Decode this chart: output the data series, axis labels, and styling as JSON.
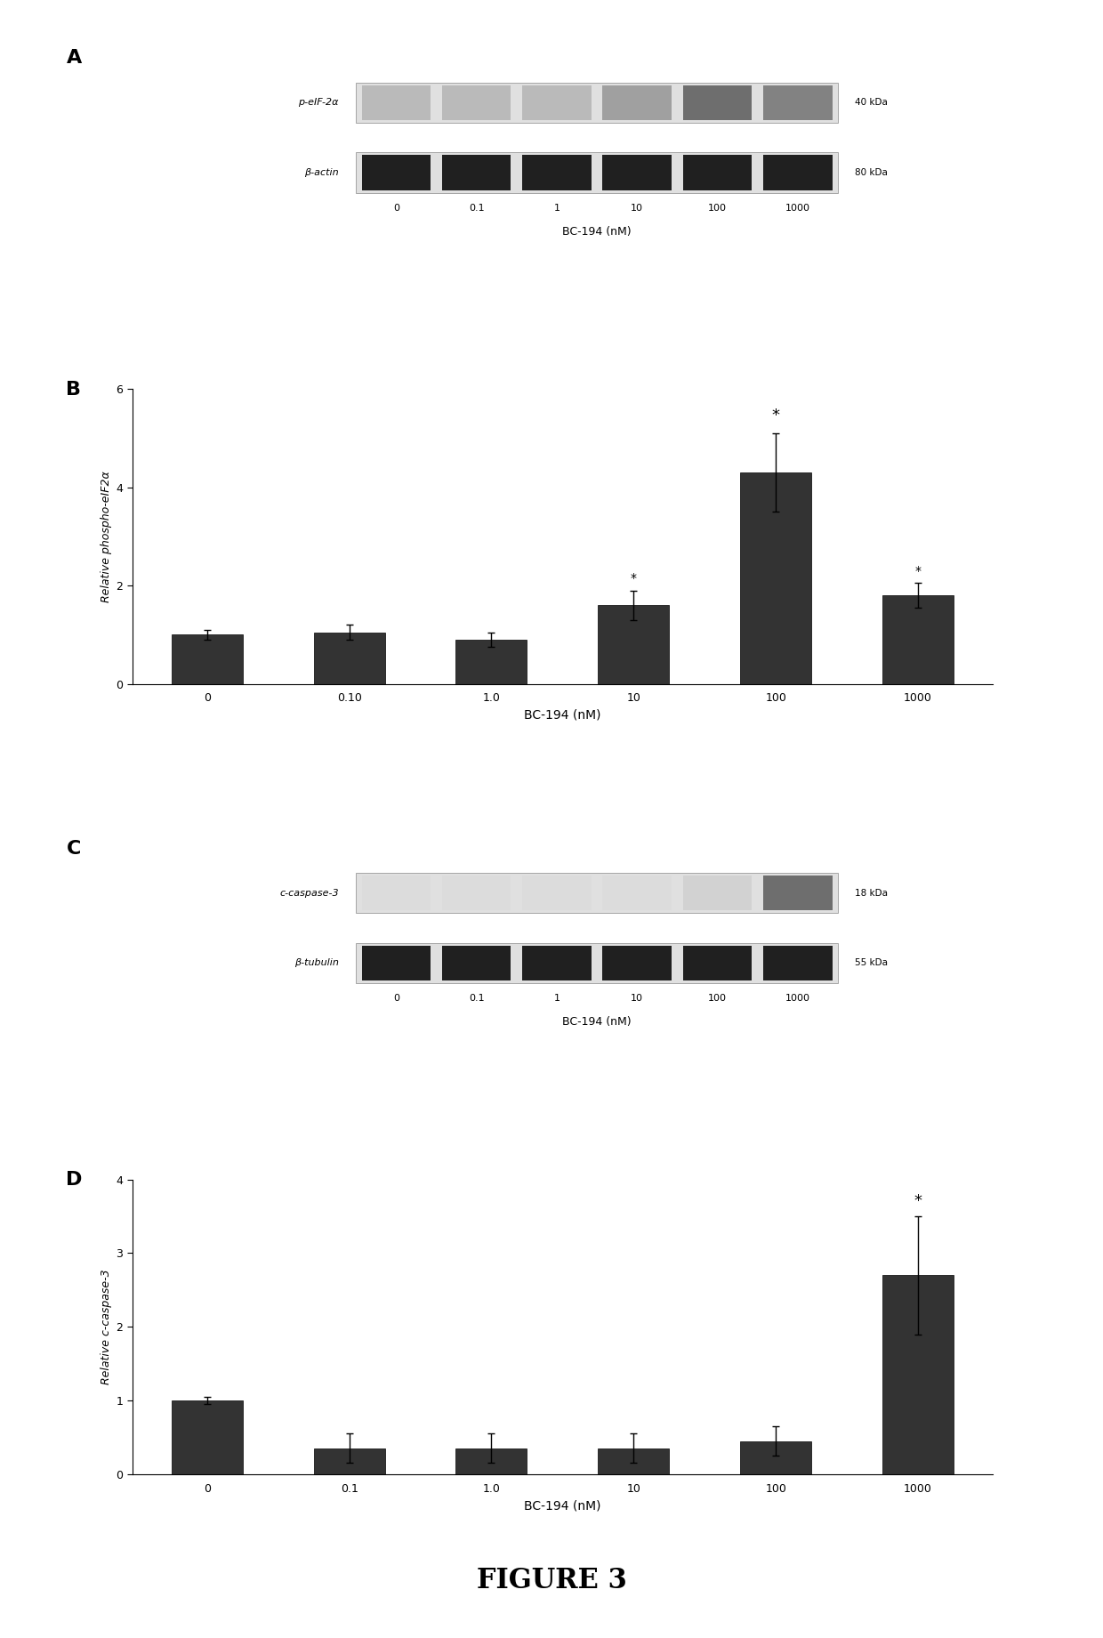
{
  "panel_B": {
    "categories": [
      "0",
      "0.10",
      "1.0",
      "10",
      "100",
      "1000"
    ],
    "values": [
      1.0,
      1.05,
      0.9,
      1.6,
      4.3,
      1.8
    ],
    "errors": [
      0.1,
      0.15,
      0.15,
      0.3,
      0.8,
      0.25
    ],
    "ylabel": "Relative phospho-eIF2α",
    "xlabel": "BC-194 (nM)",
    "ylim": [
      0,
      6
    ],
    "yticks": [
      0,
      2,
      4,
      6
    ],
    "asterisk_idx": [
      4
    ],
    "asterisk2_idx": [
      3,
      5
    ],
    "bar_color": "#333333"
  },
  "panel_D": {
    "categories": [
      "0",
      "0.1",
      "1.0",
      "10",
      "100",
      "1000"
    ],
    "values": [
      1.0,
      0.35,
      0.35,
      0.35,
      0.45,
      2.7
    ],
    "errors": [
      0.05,
      0.2,
      0.2,
      0.2,
      0.2,
      0.8
    ],
    "ylabel": "Relative c-caspase-3",
    "xlabel": "BC-194 (nM)",
    "ylim": [
      0,
      4
    ],
    "yticks": [
      0,
      1,
      2,
      3,
      4
    ],
    "asterisk_idx": [
      5
    ],
    "bar_color": "#333333"
  },
  "figure_label": "FIGURE 3",
  "background_color": "#ffffff",
  "western_blot_A": {
    "row1_label": "p-eIF-2α",
    "row2_label": "β-actin",
    "row1_kda": "40 kDa",
    "row2_kda": "80 kDa",
    "xlabel": "BC-194 (nM)",
    "xtick_labels": [
      "0",
      "0.1",
      "1",
      "10",
      "100",
      "1000"
    ],
    "row1_intensity": [
      0.22,
      0.22,
      0.22,
      0.35,
      0.6,
      0.5
    ],
    "row2_intensity": [
      0.92,
      0.92,
      0.92,
      0.92,
      0.92,
      0.92
    ]
  },
  "western_blot_C": {
    "row1_label": "c-caspase-3",
    "row2_label": "β-tubulin",
    "row1_kda": "18 kDa",
    "row2_kda": "55 kDa",
    "xlabel": "BC-194 (nM)",
    "xtick_labels": [
      "0",
      "0.1",
      "1",
      "10",
      "100",
      "1000"
    ],
    "row1_intensity": [
      0.05,
      0.05,
      0.05,
      0.05,
      0.1,
      0.6
    ],
    "row2_intensity": [
      0.92,
      0.92,
      0.92,
      0.92,
      0.92,
      0.92
    ]
  }
}
